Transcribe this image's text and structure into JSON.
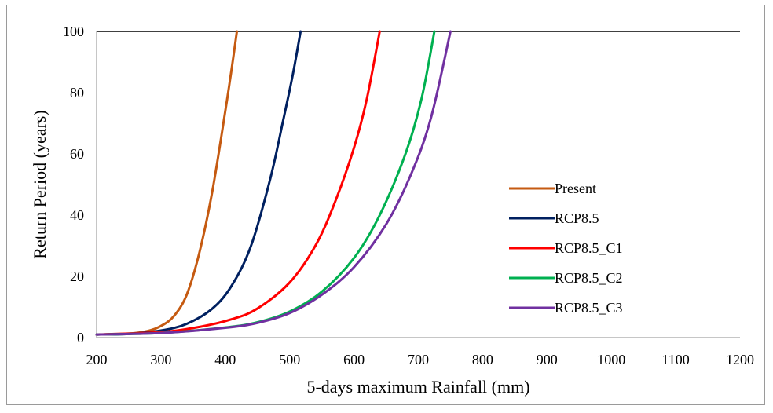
{
  "chart_data": {
    "type": "line",
    "title": "",
    "xlabel": "5-days maximum Rainfall (mm)",
    "ylabel": "Return Period (years)",
    "xlim": [
      200,
      1200
    ],
    "ylim": [
      0,
      100
    ],
    "xticks": [
      200,
      300,
      400,
      500,
      600,
      700,
      800,
      900,
      1000,
      1100,
      1200
    ],
    "yticks": [
      0,
      20,
      40,
      60,
      80,
      100
    ],
    "grid": false,
    "legend_position": "right",
    "series": [
      {
        "name": "Present",
        "color": "#C55A11",
        "x": [
          200,
          250,
          280,
          300,
          320,
          340,
          360,
          380,
          400,
          410,
          418
        ],
        "y": [
          1,
          1.3,
          2.2,
          3.8,
          7,
          14,
          28,
          48,
          74,
          88,
          100
        ]
      },
      {
        "name": "RCP8.5",
        "color": "#002060",
        "x": [
          200,
          250,
          300,
          340,
          380,
          410,
          440,
          470,
          490,
          505,
          517
        ],
        "y": [
          1,
          1.2,
          2.3,
          4.5,
          9.5,
          17,
          30,
          52,
          71,
          86,
          100
        ]
      },
      {
        "name": "RCP8.5_C1",
        "color": "#FF0000",
        "x": [
          200,
          300,
          360,
          410,
          450,
          500,
          540,
          570,
          600,
          620,
          640
        ],
        "y": [
          1,
          1.8,
          3.5,
          6,
          9.5,
          18,
          30,
          44,
          62,
          78,
          100
        ]
      },
      {
        "name": "RCP8.5_C2",
        "color": "#00B050",
        "x": [
          200,
          300,
          400,
          450,
          500,
          550,
          600,
          640,
          680,
          705,
          725
        ],
        "y": [
          1,
          1.5,
          3.3,
          5,
          8.5,
          15,
          26,
          40,
          60,
          78,
          100
        ]
      },
      {
        "name": "RCP8.5_C3",
        "color": "#7030A0",
        "x": [
          200,
          300,
          400,
          450,
          500,
          550,
          600,
          650,
          690,
          720,
          750
        ],
        "y": [
          1,
          1.5,
          3.2,
          4.8,
          8,
          14,
          23,
          37,
          54,
          72,
          100
        ]
      }
    ]
  }
}
